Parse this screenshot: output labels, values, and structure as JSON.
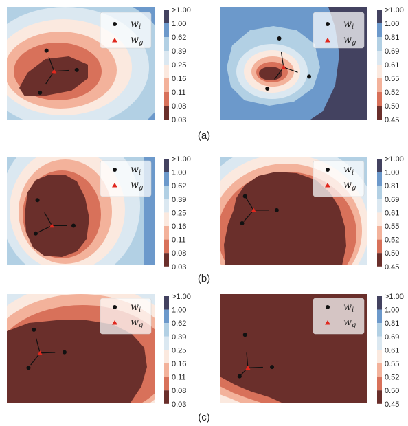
{
  "colors": {
    "levels": [
      "#6a2f2b",
      "#d8715a",
      "#f3b29b",
      "#fbe9df",
      "#dbe8f1",
      "#b2d0e4",
      "#6c99cb",
      "#434260"
    ],
    "client_point": "#111111",
    "global_point": "#e0281e",
    "edge": "#111111"
  },
  "captions": [
    "(a)",
    "(b)",
    "(c)"
  ],
  "legend": {
    "client": "w",
    "client_sub": "i",
    "global": "w",
    "global_sub": "g"
  },
  "chart_data": [
    {
      "type": "heatmap",
      "row": "(a)",
      "colorbar_ticks": [
        ">1.00",
        "1.00",
        "0.62",
        "0.39",
        "0.25",
        "0.16",
        "0.11",
        "0.08",
        "0.03"
      ],
      "clients": [
        [
          -0.78,
          -0.72
        ],
        [
          -0.6,
          0.32
        ],
        [
          0.24,
          -0.16
        ]
      ],
      "global_model": [
        -0.39,
        -0.19
      ],
      "xlim": [
        -1.7,
        2.4
      ],
      "ylim": [
        -1.4,
        1.4
      ],
      "legend_position": "upper right",
      "grid": false
    },
    {
      "type": "heatmap",
      "row": "(a)",
      "colorbar_ticks": [
        ">1.00",
        "1.00",
        "0.81",
        "0.69",
        "0.61",
        "0.55",
        "0.52",
        "0.50",
        "0.45"
      ],
      "clients": [
        [
          -0.05,
          0.62
        ],
        [
          -0.38,
          -0.62
        ],
        [
          0.78,
          -0.32
        ]
      ],
      "global_model": [
        0.07,
        -0.09
      ],
      "xlim": [
        -1.7,
        2.4
      ],
      "ylim": [
        -1.4,
        1.4
      ],
      "legend_position": "upper right",
      "grid": false
    },
    {
      "type": "heatmap",
      "row": "(b)",
      "colorbar_ticks": [
        ">1.00",
        "1.00",
        "0.62",
        "0.39",
        "0.25",
        "0.16",
        "0.11",
        "0.08",
        "0.03"
      ],
      "clients": [
        [
          -0.85,
          0.28
        ],
        [
          -0.9,
          -0.58
        ],
        [
          0.15,
          -0.38
        ]
      ],
      "global_model": [
        -0.45,
        -0.38
      ],
      "xlim": [
        -1.7,
        2.4
      ],
      "ylim": [
        -1.4,
        1.4
      ],
      "legend_position": "upper right",
      "grid": false
    },
    {
      "type": "heatmap",
      "row": "(b)",
      "colorbar_ticks": [
        ">1.00",
        "1.00",
        "0.81",
        "0.69",
        "0.61",
        "0.55",
        "0.52",
        "0.50",
        "0.45"
      ],
      "clients": [
        [
          -1.0,
          0.38
        ],
        [
          -1.08,
          -0.32
        ],
        [
          -0.12,
          0.02
        ]
      ],
      "global_model": [
        -0.76,
        0.02
      ],
      "xlim": [
        -1.7,
        2.4
      ],
      "ylim": [
        -1.4,
        1.4
      ],
      "legend_position": "upper right",
      "grid": false
    },
    {
      "type": "heatmap",
      "row": "(c)",
      "colorbar_ticks": [
        ">1.00",
        "1.00",
        "0.62",
        "0.39",
        "0.25",
        "0.16",
        "0.11",
        "0.08",
        "0.03"
      ],
      "clients": [
        [
          -0.95,
          0.48
        ],
        [
          -1.1,
          -0.5
        ],
        [
          -0.1,
          -0.1
        ]
      ],
      "global_model": [
        -0.78,
        -0.12
      ],
      "xlim": [
        -1.7,
        2.4
      ],
      "ylim": [
        -1.4,
        1.4
      ],
      "legend_position": "upper right",
      "grid": false
    },
    {
      "type": "heatmap",
      "row": "(c)",
      "colorbar_ticks": [
        ">1.00",
        "1.00",
        "0.81",
        "0.69",
        "0.61",
        "0.55",
        "0.52",
        "0.50",
        "0.45"
      ],
      "clients": [
        [
          -1.0,
          0.35
        ],
        [
          -1.15,
          -0.72
        ],
        [
          -0.25,
          -0.48
        ]
      ],
      "global_model": [
        -0.92,
        -0.5
      ],
      "xlim": [
        -1.7,
        2.4
      ],
      "ylim": [
        -1.4,
        1.4
      ],
      "legend_position": "upper right",
      "grid": false
    }
  ]
}
